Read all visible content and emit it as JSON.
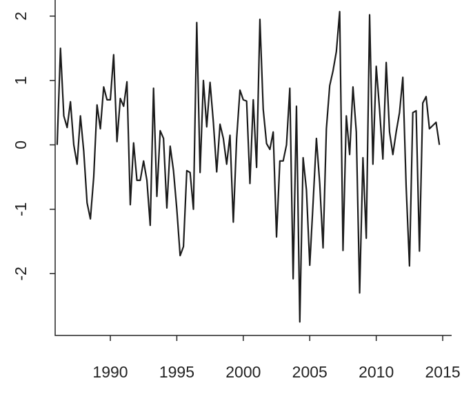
{
  "chart_data": {
    "type": "line",
    "x": [
      1986,
      1986.25,
      1986.5,
      1986.75,
      1987,
      1987.25,
      1987.5,
      1987.75,
      1988,
      1988.25,
      1988.5,
      1988.75,
      1989,
      1989.25,
      1989.5,
      1989.75,
      1990,
      1990.25,
      1990.5,
      1990.75,
      1991,
      1991.25,
      1991.5,
      1991.75,
      1992,
      1992.25,
      1992.5,
      1992.75,
      1993,
      1993.25,
      1993.5,
      1993.75,
      1994,
      1994.25,
      1994.5,
      1994.75,
      1995,
      1995.25,
      1995.5,
      1995.75,
      1996,
      1996.25,
      1996.5,
      1996.75,
      1997,
      1997.25,
      1997.5,
      1997.75,
      1998,
      1998.25,
      1998.5,
      1998.75,
      1999,
      1999.25,
      1999.5,
      1999.75,
      2000,
      2000.25,
      2000.5,
      2000.75,
      2001,
      2001.25,
      2001.5,
      2001.75,
      2002,
      2002.25,
      2002.5,
      2002.75,
      2003,
      2003.25,
      2003.5,
      2003.75,
      2004,
      2004.25,
      2004.5,
      2004.75,
      2005,
      2005.25,
      2005.5,
      2005.75,
      2006,
      2006.25,
      2006.5,
      2006.75,
      2007,
      2007.25,
      2007.5,
      2007.75,
      2008,
      2008.25,
      2008.5,
      2008.75,
      2009,
      2009.25,
      2009.5,
      2009.75,
      2010,
      2010.25,
      2010.5,
      2010.75,
      2011,
      2011.25,
      2011.5,
      2011.75,
      2012,
      2012.25,
      2012.5,
      2012.75,
      2013,
      2013.25,
      2013.5,
      2013.75,
      2014,
      2014.25,
      2014.5,
      2014.75
    ],
    "series": [
      {
        "color": "#1a1a1a",
        "values": [
          0.0,
          1.5,
          0.45,
          0.27,
          0.67,
          0.0,
          -0.3,
          0.45,
          -0.1,
          -0.9,
          -1.15,
          -0.5,
          0.62,
          0.25,
          0.9,
          0.7,
          0.7,
          1.4,
          0.05,
          0.72,
          0.6,
          0.98,
          -0.93,
          0.03,
          -0.55,
          -0.55,
          -0.25,
          -0.55,
          -1.25,
          0.88,
          -0.8,
          0.22,
          0.1,
          -0.98,
          -0.02,
          -0.4,
          -1.0,
          -1.72,
          -1.58,
          -0.4,
          -0.43,
          -1.0,
          1.9,
          -0.43,
          1.0,
          0.28,
          0.97,
          0.35,
          -0.42,
          0.32,
          0.1,
          -0.3,
          0.15,
          -1.2,
          0.1,
          0.85,
          0.7,
          0.68,
          -0.6,
          0.7,
          -0.35,
          1.95,
          0.55,
          0.02,
          -0.07,
          0.2,
          -1.43,
          -0.25,
          -0.25,
          0.0,
          0.88,
          -2.08,
          0.6,
          -2.75,
          -0.2,
          -0.7,
          -1.87,
          -0.9,
          0.1,
          -0.6,
          -1.6,
          0.25,
          0.92,
          1.15,
          1.45,
          2.07,
          -1.64,
          0.45,
          -0.15,
          0.9,
          0.2,
          -2.3,
          -0.2,
          -1.45,
          2.02,
          -0.3,
          1.22,
          0.55,
          -0.22,
          1.28,
          0.2,
          -0.15,
          0.2,
          0.5,
          1.05,
          -0.65,
          -1.88,
          0.5,
          0.53,
          -1.65,
          0.65,
          0.75,
          0.25,
          0.3,
          0.35,
          0.0
        ]
      }
    ],
    "xlim": [
      1985.85,
      2015.67
    ],
    "xticks": [
      1990,
      1995,
      2000,
      2005,
      2010,
      2015
    ],
    "ylim": [
      -2.96,
      2.25
    ],
    "yticks": [
      -2,
      -1,
      0,
      1,
      2
    ]
  }
}
